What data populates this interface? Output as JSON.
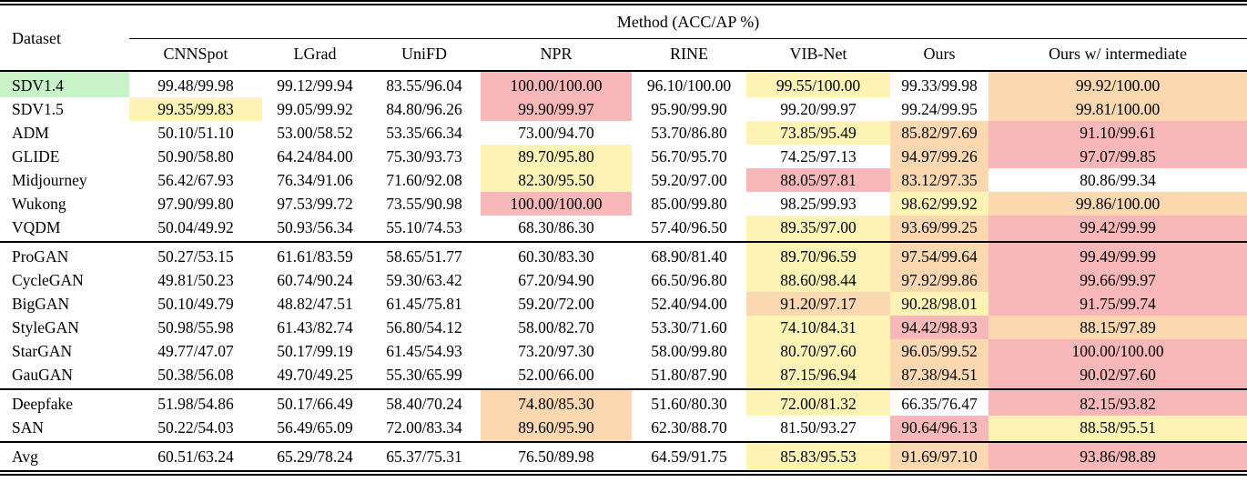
{
  "table": {
    "corner_header": "Dataset",
    "group_header": "Method (ACC/AP %)",
    "columns": [
      "CNNSpot",
      "LGrad",
      "UniFD",
      "NPR",
      "RINE",
      "VIB-Net",
      "Ours",
      "Ours w/ intermediate"
    ],
    "highlight_colors": {
      "green": "#c8f2c8",
      "yellow": "#fcf3b4",
      "orange": "#fbd8b0",
      "red": "#f8b8b9"
    },
    "groups": [
      {
        "rows": [
          {
            "dataset": "SDV1.4",
            "dataset_bg": "green",
            "cells": [
              {
                "v": "99.48/99.98"
              },
              {
                "v": "99.12/99.94"
              },
              {
                "v": "83.55/96.04"
              },
              {
                "v": "100.00/100.00",
                "bg": "red"
              },
              {
                "v": "96.10/100.00"
              },
              {
                "v": "99.55/100.00",
                "bg": "yellow"
              },
              {
                "v": "99.33/99.98"
              },
              {
                "v": "99.92/100.00",
                "bg": "orange"
              }
            ]
          },
          {
            "dataset": "SDV1.5",
            "cells": [
              {
                "v": "99.35/99.83",
                "bg": "yellow"
              },
              {
                "v": "99.05/99.92"
              },
              {
                "v": "84.80/96.26"
              },
              {
                "v": "99.90/99.97",
                "bg": "red"
              },
              {
                "v": "95.90/99.90"
              },
              {
                "v": "99.20/99.97"
              },
              {
                "v": "99.24/99.95"
              },
              {
                "v": "99.81/100.00",
                "bg": "orange"
              }
            ]
          },
          {
            "dataset": "ADM",
            "cells": [
              {
                "v": "50.10/51.10"
              },
              {
                "v": "53.00/58.52"
              },
              {
                "v": "53.35/66.34"
              },
              {
                "v": "73.00/94.70"
              },
              {
                "v": "53.70/86.80"
              },
              {
                "v": "73.85/95.49",
                "bg": "yellow"
              },
              {
                "v": "85.82/97.69",
                "bg": "orange"
              },
              {
                "v": "91.10/99.61",
                "bg": "red"
              }
            ]
          },
          {
            "dataset": "GLIDE",
            "cells": [
              {
                "v": "50.90/58.80"
              },
              {
                "v": "64.24/84.00"
              },
              {
                "v": "75.30/93.73"
              },
              {
                "v": "89.70/95.80",
                "bg": "yellow"
              },
              {
                "v": "56.70/95.70"
              },
              {
                "v": "74.25/97.13"
              },
              {
                "v": "94.97/99.26",
                "bg": "orange"
              },
              {
                "v": "97.07/99.85",
                "bg": "red"
              }
            ]
          },
          {
            "dataset": "Midjourney",
            "cells": [
              {
                "v": "56.42/67.93"
              },
              {
                "v": "76.34/91.06"
              },
              {
                "v": "71.60/92.08"
              },
              {
                "v": "82.30/95.50",
                "bg": "yellow"
              },
              {
                "v": "59.20/97.00"
              },
              {
                "v": "88.05/97.81",
                "bg": "red"
              },
              {
                "v": "83.12/97.35",
                "bg": "orange"
              },
              {
                "v": "80.86/99.34"
              }
            ]
          },
          {
            "dataset": "Wukong",
            "cells": [
              {
                "v": "97.90/99.80"
              },
              {
                "v": "97.53/99.72"
              },
              {
                "v": "73.55/90.98"
              },
              {
                "v": "100.00/100.00",
                "bg": "red"
              },
              {
                "v": "85.00/99.80"
              },
              {
                "v": "98.25/99.93"
              },
              {
                "v": "98.62/99.92",
                "bg": "yellow"
              },
              {
                "v": "99.86/100.00",
                "bg": "orange"
              }
            ]
          },
          {
            "dataset": "VQDM",
            "cells": [
              {
                "v": "50.04/49.92"
              },
              {
                "v": "50.93/56.34"
              },
              {
                "v": "55.10/74.53"
              },
              {
                "v": "68.30/86.30"
              },
              {
                "v": "57.40/96.50"
              },
              {
                "v": "89.35/97.00",
                "bg": "yellow"
              },
              {
                "v": "93.69/99.25",
                "bg": "orange"
              },
              {
                "v": "99.42/99.99",
                "bg": "red"
              }
            ]
          }
        ]
      },
      {
        "rows": [
          {
            "dataset": "ProGAN",
            "cells": [
              {
                "v": "50.27/53.15"
              },
              {
                "v": "61.61/83.59"
              },
              {
                "v": "58.65/51.77"
              },
              {
                "v": "60.30/83.30"
              },
              {
                "v": "68.90/81.40"
              },
              {
                "v": "89.70/96.59",
                "bg": "yellow"
              },
              {
                "v": "97.54/99.64",
                "bg": "orange"
              },
              {
                "v": "99.49/99.99",
                "bg": "red"
              }
            ]
          },
          {
            "dataset": "CycleGAN",
            "cells": [
              {
                "v": "49.81/50.23"
              },
              {
                "v": "60.74/90.24"
              },
              {
                "v": "59.30/63.42"
              },
              {
                "v": "67.20/94.90"
              },
              {
                "v": "66.50/96.80"
              },
              {
                "v": "88.60/98.44",
                "bg": "yellow"
              },
              {
                "v": "97.92/99.86",
                "bg": "orange"
              },
              {
                "v": "99.66/99.97",
                "bg": "red"
              }
            ]
          },
          {
            "dataset": "BigGAN",
            "cells": [
              {
                "v": "50.10/49.79"
              },
              {
                "v": "48.82/47.51"
              },
              {
                "v": "61.45/75.81"
              },
              {
                "v": "59.20/72.00"
              },
              {
                "v": "52.40/94.00"
              },
              {
                "v": "91.20/97.17",
                "bg": "orange"
              },
              {
                "v": "90.28/98.01",
                "bg": "yellow"
              },
              {
                "v": "91.75/99.74",
                "bg": "red"
              }
            ]
          },
          {
            "dataset": "StyleGAN",
            "cells": [
              {
                "v": "50.98/55.98"
              },
              {
                "v": "61.43/82.74"
              },
              {
                "v": "56.80/54.12"
              },
              {
                "v": "58.00/82.70"
              },
              {
                "v": "53.30/71.60"
              },
              {
                "v": "74.10/84.31",
                "bg": "yellow"
              },
              {
                "v": "94.42/98.93",
                "bg": "red"
              },
              {
                "v": "88.15/97.89",
                "bg": "orange"
              }
            ]
          },
          {
            "dataset": "StarGAN",
            "cells": [
              {
                "v": "49.77/47.07"
              },
              {
                "v": "50.17/99.19"
              },
              {
                "v": "61.45/54.93"
              },
              {
                "v": "73.20/97.30"
              },
              {
                "v": "58.00/99.80"
              },
              {
                "v": "80.70/97.60",
                "bg": "yellow"
              },
              {
                "v": "96.05/99.52",
                "bg": "orange"
              },
              {
                "v": "100.00/100.00",
                "bg": "red"
              }
            ]
          },
          {
            "dataset": "GauGAN",
            "cells": [
              {
                "v": "50.38/56.08"
              },
              {
                "v": "49.70/49.25"
              },
              {
                "v": "55.30/65.99"
              },
              {
                "v": "52.00/66.00"
              },
              {
                "v": "51.80/87.90"
              },
              {
                "v": "87.15/96.94",
                "bg": "yellow"
              },
              {
                "v": "87.38/94.51",
                "bg": "orange"
              },
              {
                "v": "90.02/97.60",
                "bg": "red"
              }
            ]
          }
        ]
      },
      {
        "rows": [
          {
            "dataset": "Deepfake",
            "cells": [
              {
                "v": "51.98/54.86"
              },
              {
                "v": "50.17/66.49"
              },
              {
                "v": "58.40/70.24"
              },
              {
                "v": "74.80/85.30",
                "bg": "orange"
              },
              {
                "v": "51.60/80.30"
              },
              {
                "v": "72.00/81.32",
                "bg": "yellow"
              },
              {
                "v": "66.35/76.47"
              },
              {
                "v": "82.15/93.82",
                "bg": "red"
              }
            ]
          },
          {
            "dataset": "SAN",
            "cells": [
              {
                "v": "50.22/54.03"
              },
              {
                "v": "56.49/65.09"
              },
              {
                "v": "72.00/83.34"
              },
              {
                "v": "89.60/95.90",
                "bg": "orange"
              },
              {
                "v": "62.30/88.70"
              },
              {
                "v": "81.50/93.27"
              },
              {
                "v": "90.64/96.13",
                "bg": "red"
              },
              {
                "v": "88.58/95.51",
                "bg": "yellow"
              }
            ]
          }
        ]
      },
      {
        "rows": [
          {
            "dataset": "Avg",
            "cells": [
              {
                "v": "60.51/63.24"
              },
              {
                "v": "65.29/78.24"
              },
              {
                "v": "65.37/75.31"
              },
              {
                "v": "76.50/89.98"
              },
              {
                "v": "64.59/91.75"
              },
              {
                "v": "85.83/95.53",
                "bg": "yellow"
              },
              {
                "v": "91.69/97.10",
                "bg": "orange"
              },
              {
                "v": "93.86/98.89",
                "bg": "red"
              }
            ]
          }
        ]
      }
    ]
  }
}
